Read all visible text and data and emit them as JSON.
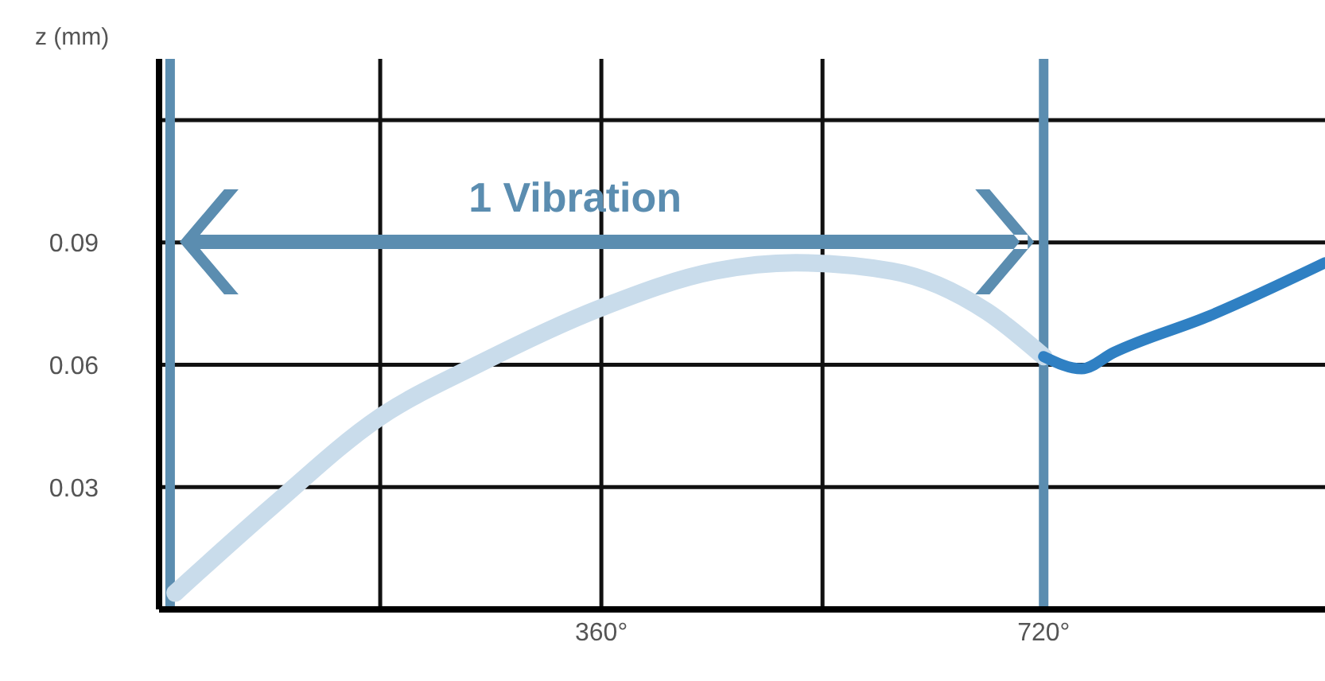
{
  "chart_data": {
    "type": "line",
    "ylabel": "z (mm)",
    "annotations": [
      "1 Vibration"
    ],
    "xlim": [
      0,
      949
    ],
    "ylim": [
      0,
      0.135
    ],
    "xticks": [
      {
        "value": 180,
        "label": null
      },
      {
        "value": 360,
        "label": "360°"
      },
      {
        "value": 540,
        "label": null
      },
      {
        "value": 720,
        "label": "720°"
      }
    ],
    "yticks": [
      0.03,
      0.06,
      0.09,
      {
        "value": 0.12,
        "label": null
      }
    ],
    "grid": true,
    "marker": "none",
    "line_style": "solid",
    "ref_lines": [
      {
        "axis": "x",
        "value": 9,
        "label": null,
        "color": "#5b8db0"
      },
      {
        "axis": "x",
        "value": 720,
        "label": null,
        "color": "#5b8db0"
      }
    ],
    "series": [
      {
        "color": "#c9dceb",
        "x": [
          13,
          91,
          179,
          259,
          360,
          453,
          518,
          596,
          674,
          720
        ],
        "values": [
          0.004,
          0.025,
          0.047,
          0.06,
          0.074,
          0.083,
          0.085,
          0.083,
          0.073,
          0.062
        ]
      },
      {
        "color": "#2f80c3",
        "x": [
          720,
          751,
          777,
          855,
          949
        ],
        "values": [
          0.062,
          0.059,
          0.063,
          0.072,
          0.085
        ]
      }
    ]
  }
}
